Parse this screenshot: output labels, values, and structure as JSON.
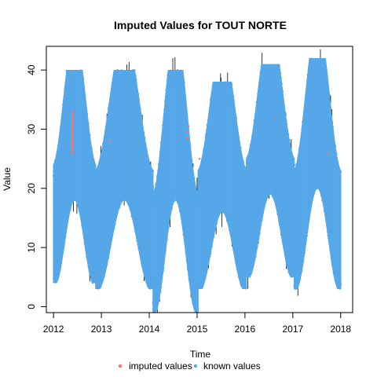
{
  "chart_data": {
    "type": "scatter",
    "title": "Imputed Values for  TOUT NORTE",
    "xlabel": "Time",
    "ylabel": "Value",
    "xlim": [
      2011.85,
      2018.25
    ],
    "ylim": [
      -1,
      44
    ],
    "x_ticks": [
      2012,
      2013,
      2014,
      2015,
      2016,
      2017,
      2018
    ],
    "y_ticks": [
      0,
      10,
      20,
      30,
      40
    ],
    "grid": false,
    "legend_position": "bottom",
    "series": [
      {
        "name": "imputed values",
        "color": "#F8766D",
        "points": [
          [
            2012.38,
            26.0
          ],
          [
            2012.38,
            27.5
          ],
          [
            2012.39,
            29.0
          ],
          [
            2012.39,
            30.5
          ],
          [
            2012.4,
            32.0
          ],
          [
            2012.4,
            33.0
          ],
          [
            2012.41,
            28.0
          ],
          [
            2012.41,
            31.0
          ],
          [
            2014.8,
            28.5
          ],
          [
            2014.81,
            29.5
          ],
          [
            2014.82,
            30.5
          ],
          [
            2013.17,
            28.0
          ],
          [
            2015.05,
            25.0
          ],
          [
            2016.62,
            32.0
          ],
          [
            2017.72,
            26.0
          ]
        ]
      },
      {
        "name": "known values",
        "color": "#56A8E8",
        "seasonal": {
          "cycles": [
            {
              "start": 2012.0,
              "end": 2012.88,
              "min": 4,
              "max": 40
            },
            {
              "start": 2012.88,
              "end": 2014.08,
              "min": 3,
              "max": 40
            },
            {
              "start": 2014.08,
              "end": 2015.02,
              "min": -1,
              "max": 40
            },
            {
              "start": 2015.02,
              "end": 2016.03,
              "min": 3,
              "max": 38
            },
            {
              "start": 2016.03,
              "end": 2017.03,
              "min": 5,
              "max": 41
            },
            {
              "start": 2017.03,
              "end": 2018.0,
              "min": 3,
              "max": 42
            }
          ]
        }
      }
    ],
    "overlay_color": "#000000"
  }
}
